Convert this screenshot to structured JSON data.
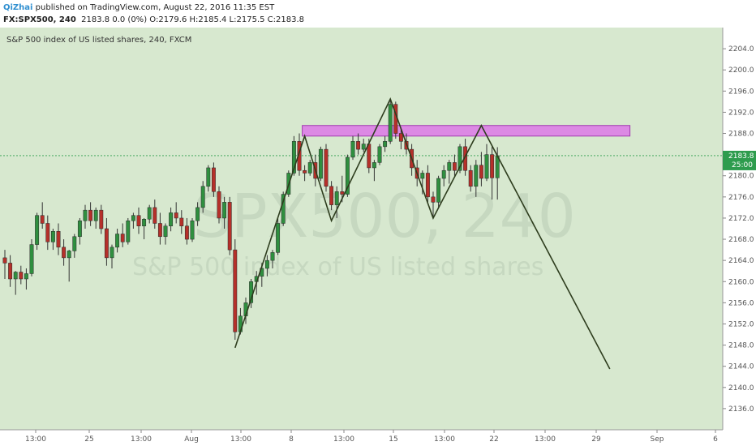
{
  "header": {
    "author": "QiZhai",
    "published": "published on TradingView.com, August 22, 2016 11:35 EST",
    "symbol": "FX:SPX500, 240",
    "quote": "2183.8 0.0 (0%) O:2179.6 H:2185.4 L:2175.5 C:2183.8"
  },
  "colors": {
    "background": "#d7e8cf",
    "up_candle": "#2f8f3f",
    "down_candle": "#b5302a",
    "pattern_line": "#2e3d1e",
    "resistance_zone": "#dd78e8",
    "current_price_tag": "#2e9c4e"
  },
  "chart_data": {
    "type": "candlestick",
    "title": "S&P 500 index of US listed shares, 240, FXCM",
    "watermark": "SPX500, 240",
    "watermark_sub": "S&P 500 index of US listed shares",
    "ylim": [
      2132,
      2208
    ],
    "y_ticks": [
      2136,
      2140,
      2144,
      2148,
      2152,
      2156,
      2160,
      2164,
      2168,
      2172,
      2176,
      2180,
      2184,
      2188,
      2192,
      2196,
      2200,
      2204
    ],
    "y_tick_labels": [
      "2136.0",
      "2140.0",
      "2144.0",
      "2148.0",
      "2152.0",
      "2156.0",
      "2160.0",
      "2164.0",
      "2168.0",
      "2172.0",
      "2176.0",
      "2180.0",
      "2184.0",
      "2188.0",
      "2192.0",
      "2196.0",
      "2200.0",
      "2204.0"
    ],
    "x_labels": [
      "13:00",
      "25",
      "13:00",
      "Aug",
      "13:00",
      "8",
      "13:00",
      "15",
      "13:00",
      "22",
      "13:00",
      "29",
      "Sep",
      "6"
    ],
    "current_price": 2183.8,
    "current_price_label": "2183.8",
    "countdown": "25:00",
    "candles": [
      {
        "o": 2164.5,
        "h": 2166,
        "l": 2160.5,
        "c": 2163.5
      },
      {
        "o": 2163.5,
        "h": 2165,
        "l": 2159,
        "c": 2160.5
      },
      {
        "o": 2160.5,
        "h": 2162,
        "l": 2157.5,
        "c": 2161.8
      },
      {
        "o": 2161.8,
        "h": 2163,
        "l": 2159.5,
        "c": 2160.5
      },
      {
        "o": 2160.5,
        "h": 2162.5,
        "l": 2158.5,
        "c": 2161.5
      },
      {
        "o": 2161.5,
        "h": 2168,
        "l": 2161,
        "c": 2167
      },
      {
        "o": 2167,
        "h": 2173,
        "l": 2166,
        "c": 2172.5
      },
      {
        "o": 2172.5,
        "h": 2175,
        "l": 2170,
        "c": 2171
      },
      {
        "o": 2171,
        "h": 2172.5,
        "l": 2166,
        "c": 2167.5
      },
      {
        "o": 2167.5,
        "h": 2170,
        "l": 2166,
        "c": 2169.5
      },
      {
        "o": 2169.5,
        "h": 2171,
        "l": 2165,
        "c": 2166.5
      },
      {
        "o": 2166.5,
        "h": 2168,
        "l": 2163,
        "c": 2164.5
      },
      {
        "o": 2164.5,
        "h": 2166,
        "l": 2160,
        "c": 2165.8
      },
      {
        "o": 2165.8,
        "h": 2169,
        "l": 2164.5,
        "c": 2168.5
      },
      {
        "o": 2168.5,
        "h": 2172,
        "l": 2167,
        "c": 2171.5
      },
      {
        "o": 2171.5,
        "h": 2174.5,
        "l": 2170,
        "c": 2173.5
      },
      {
        "o": 2173.5,
        "h": 2175,
        "l": 2170.5,
        "c": 2171.5
      },
      {
        "o": 2171.5,
        "h": 2174,
        "l": 2170,
        "c": 2173.5
      },
      {
        "o": 2173.5,
        "h": 2174.5,
        "l": 2169,
        "c": 2170
      },
      {
        "o": 2170,
        "h": 2172,
        "l": 2163,
        "c": 2164.5
      },
      {
        "o": 2164.5,
        "h": 2167,
        "l": 2162.5,
        "c": 2166.5
      },
      {
        "o": 2166.5,
        "h": 2170,
        "l": 2165.5,
        "c": 2169
      },
      {
        "o": 2169,
        "h": 2171,
        "l": 2166.5,
        "c": 2167.5
      },
      {
        "o": 2167.5,
        "h": 2172,
        "l": 2167,
        "c": 2171.5
      },
      {
        "o": 2171.5,
        "h": 2173,
        "l": 2170,
        "c": 2172.5
      },
      {
        "o": 2172.5,
        "h": 2174,
        "l": 2169,
        "c": 2170.5
      },
      {
        "o": 2170.5,
        "h": 2172,
        "l": 2168,
        "c": 2171.8
      },
      {
        "o": 2171.8,
        "h": 2174.5,
        "l": 2171,
        "c": 2174
      },
      {
        "o": 2174,
        "h": 2175.5,
        "l": 2170,
        "c": 2171
      },
      {
        "o": 2171,
        "h": 2173,
        "l": 2167,
        "c": 2168.5
      },
      {
        "o": 2168.5,
        "h": 2171,
        "l": 2167,
        "c": 2170.5
      },
      {
        "o": 2170.5,
        "h": 2174,
        "l": 2169.5,
        "c": 2173
      },
      {
        "o": 2173,
        "h": 2175,
        "l": 2171,
        "c": 2172
      },
      {
        "o": 2172,
        "h": 2173.5,
        "l": 2169,
        "c": 2170.5
      },
      {
        "o": 2170.5,
        "h": 2172,
        "l": 2167,
        "c": 2168
      },
      {
        "o": 2168,
        "h": 2172,
        "l": 2167.5,
        "c": 2171.5
      },
      {
        "o": 2171.5,
        "h": 2175,
        "l": 2170.5,
        "c": 2174
      },
      {
        "o": 2174,
        "h": 2179,
        "l": 2173,
        "c": 2178
      },
      {
        "o": 2178,
        "h": 2182,
        "l": 2177,
        "c": 2181.5
      },
      {
        "o": 2181.5,
        "h": 2182.5,
        "l": 2176,
        "c": 2177
      },
      {
        "o": 2177,
        "h": 2178,
        "l": 2171,
        "c": 2172
      },
      {
        "o": 2172,
        "h": 2176,
        "l": 2170,
        "c": 2175
      },
      {
        "o": 2175,
        "h": 2176,
        "l": 2165,
        "c": 2166
      },
      {
        "o": 2166,
        "h": 2168,
        "l": 2149,
        "c": 2150.5
      },
      {
        "o": 2150.5,
        "h": 2155,
        "l": 2150,
        "c": 2153.5
      },
      {
        "o": 2153.5,
        "h": 2157,
        "l": 2152,
        "c": 2156
      },
      {
        "o": 2156,
        "h": 2160.5,
        "l": 2155,
        "c": 2160
      },
      {
        "o": 2160,
        "h": 2162,
        "l": 2157.5,
        "c": 2161
      },
      {
        "o": 2161,
        "h": 2163.5,
        "l": 2159,
        "c": 2162.5
      },
      {
        "o": 2162.5,
        "h": 2165,
        "l": 2161,
        "c": 2164
      },
      {
        "o": 2164,
        "h": 2166,
        "l": 2162.5,
        "c": 2165.5
      },
      {
        "o": 2165.5,
        "h": 2172,
        "l": 2165,
        "c": 2171
      },
      {
        "o": 2171,
        "h": 2177,
        "l": 2170.5,
        "c": 2176.5
      },
      {
        "o": 2176.5,
        "h": 2181,
        "l": 2176,
        "c": 2180.5
      },
      {
        "o": 2180.5,
        "h": 2187.5,
        "l": 2180,
        "c": 2186.5
      },
      {
        "o": 2186.5,
        "h": 2188,
        "l": 2180,
        "c": 2181
      },
      {
        "o": 2181,
        "h": 2182,
        "l": 2179,
        "c": 2180.5
      },
      {
        "o": 2180.5,
        "h": 2183,
        "l": 2180,
        "c": 2182.5
      },
      {
        "o": 2182.5,
        "h": 2184,
        "l": 2178,
        "c": 2179.5
      },
      {
        "o": 2179.5,
        "h": 2185.5,
        "l": 2179,
        "c": 2185
      },
      {
        "o": 2185,
        "h": 2186,
        "l": 2177,
        "c": 2178
      },
      {
        "o": 2178,
        "h": 2179,
        "l": 2173.5,
        "c": 2174.5
      },
      {
        "o": 2174.5,
        "h": 2178,
        "l": 2172,
        "c": 2177
      },
      {
        "o": 2177,
        "h": 2180,
        "l": 2175,
        "c": 2176.5
      },
      {
        "o": 2176.5,
        "h": 2184,
        "l": 2176,
        "c": 2183.5
      },
      {
        "o": 2183.5,
        "h": 2187.5,
        "l": 2183,
        "c": 2186.5
      },
      {
        "o": 2186.5,
        "h": 2188,
        "l": 2184,
        "c": 2185
      },
      {
        "o": 2185,
        "h": 2187,
        "l": 2184.5,
        "c": 2186
      },
      {
        "o": 2186,
        "h": 2187,
        "l": 2180.5,
        "c": 2181.5
      },
      {
        "o": 2181.5,
        "h": 2183,
        "l": 2179,
        "c": 2182.5
      },
      {
        "o": 2182.5,
        "h": 2186,
        "l": 2182,
        "c": 2185.5
      },
      {
        "o": 2185.5,
        "h": 2187.5,
        "l": 2184.5,
        "c": 2186.5
      },
      {
        "o": 2186.5,
        "h": 2194.5,
        "l": 2186,
        "c": 2193.5
      },
      {
        "o": 2193.5,
        "h": 2194,
        "l": 2187,
        "c": 2188
      },
      {
        "o": 2188,
        "h": 2189,
        "l": 2185,
        "c": 2186.5
      },
      {
        "o": 2186.5,
        "h": 2188,
        "l": 2184,
        "c": 2185
      },
      {
        "o": 2185,
        "h": 2186,
        "l": 2180,
        "c": 2181.5
      },
      {
        "o": 2181.5,
        "h": 2183,
        "l": 2178,
        "c": 2179.5
      },
      {
        "o": 2179.5,
        "h": 2181,
        "l": 2176.5,
        "c": 2180.5
      },
      {
        "o": 2180.5,
        "h": 2182,
        "l": 2175,
        "c": 2176
      },
      {
        "o": 2176,
        "h": 2177,
        "l": 2172,
        "c": 2175
      },
      {
        "o": 2175,
        "h": 2180,
        "l": 2174,
        "c": 2179.5
      },
      {
        "o": 2179.5,
        "h": 2182,
        "l": 2178,
        "c": 2181
      },
      {
        "o": 2181,
        "h": 2183,
        "l": 2178.5,
        "c": 2182.5
      },
      {
        "o": 2182.5,
        "h": 2184,
        "l": 2180,
        "c": 2181
      },
      {
        "o": 2181,
        "h": 2186,
        "l": 2180.5,
        "c": 2185.5
      },
      {
        "o": 2185.5,
        "h": 2187,
        "l": 2180,
        "c": 2181
      },
      {
        "o": 2181,
        "h": 2182,
        "l": 2177,
        "c": 2178
      },
      {
        "o": 2178,
        "h": 2183,
        "l": 2176,
        "c": 2182
      },
      {
        "o": 2182,
        "h": 2184.5,
        "l": 2178,
        "c": 2179.5
      },
      {
        "o": 2179.5,
        "h": 2186,
        "l": 2179,
        "c": 2184
      },
      {
        "o": 2184,
        "h": 2185.5,
        "l": 2175.5,
        "c": 2179.6
      },
      {
        "o": 2179.6,
        "h": 2185.4,
        "l": 2175.5,
        "c": 2183.8
      }
    ],
    "resistance_zone": {
      "x_start_candle": 56,
      "x_end_candle": 116,
      "y_low": 2187.5,
      "y_high": 2189.5
    },
    "pattern_line": [
      {
        "candle": 43,
        "y": 2147.5
      },
      {
        "candle": 56,
        "y": 2187.5
      },
      {
        "candle": 61,
        "y": 2171.5
      },
      {
        "candle": 72,
        "y": 2194.5
      },
      {
        "candle": 80,
        "y": 2172
      },
      {
        "candle": 89,
        "y": 2189.5
      },
      {
        "candle": 113,
        "y": 2143.5
      }
    ]
  }
}
